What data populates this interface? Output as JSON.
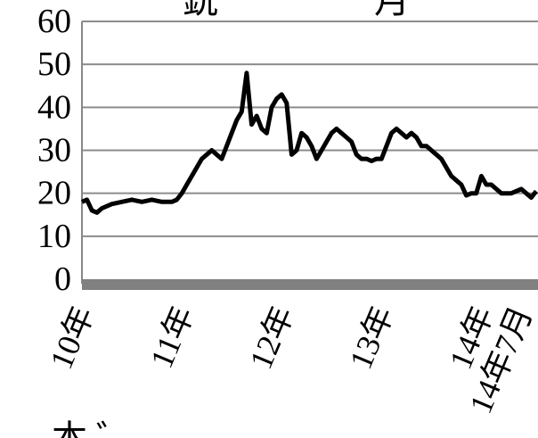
{
  "chart_data": {
    "type": "line",
    "title": "",
    "xlabel": "",
    "ylabel": "",
    "ylim": [
      0,
      60
    ],
    "yticks": [
      0,
      10,
      20,
      30,
      40,
      50,
      60
    ],
    "grid": true,
    "xtick_labels": [
      "10年",
      "11年",
      "12年",
      "13年",
      "14年",
      "14年7月"
    ],
    "series": [
      {
        "color": "#000000",
        "x": [
          0,
          0.05,
          0.1,
          0.15,
          0.2,
          0.3,
          0.4,
          0.5,
          0.6,
          0.7,
          0.8,
          0.85,
          0.9,
          0.95,
          1.0,
          1.05,
          1.1,
          1.15,
          1.2,
          1.25,
          1.3,
          1.35,
          1.4,
          1.45,
          1.5,
          1.55,
          1.6,
          1.65,
          1.7,
          1.75,
          1.8,
          1.85,
          1.9,
          1.95,
          2.0,
          2.05,
          2.1,
          2.15,
          2.2,
          2.25,
          2.3,
          2.35,
          2.4,
          2.45,
          2.5,
          2.55,
          2.6,
          2.65,
          2.7,
          2.75,
          2.8,
          2.85,
          2.9,
          2.95,
          3.0,
          3.05,
          3.1,
          3.15,
          3.2,
          3.25,
          3.3,
          3.35,
          3.4,
          3.45,
          3.5,
          3.55,
          3.6,
          3.65,
          3.7,
          3.75,
          3.8,
          3.85,
          3.9,
          3.95,
          4.0,
          4.05,
          4.1,
          4.15,
          4.2,
          4.25,
          4.3,
          4.35,
          4.4,
          4.45,
          4.5,
          4.55
        ],
        "y": [
          18,
          18.5,
          16,
          15.5,
          16.5,
          17.5,
          18,
          18.5,
          18,
          18.5,
          18,
          18,
          18,
          18.5,
          20,
          22,
          24,
          26,
          28,
          29,
          30,
          29,
          28,
          31,
          34,
          37,
          39,
          48,
          36,
          38,
          35,
          34,
          40,
          42,
          43,
          41,
          29,
          30,
          34,
          33,
          31,
          28,
          30,
          32,
          34,
          35,
          34,
          33,
          32,
          29,
          28,
          28,
          27.5,
          28,
          28,
          31,
          34,
          35,
          34,
          33,
          34,
          33,
          31,
          31,
          30,
          29,
          28,
          26,
          24,
          23,
          22,
          19.5,
          20,
          20,
          24,
          22,
          22,
          21,
          20,
          20,
          20,
          20.5,
          21,
          20,
          19,
          20.5
        ]
      }
    ]
  },
  "overlay": {
    "title_fragment_left": "銑",
    "title_fragment_right": "月",
    "footer_fragment": "本 ゛"
  }
}
